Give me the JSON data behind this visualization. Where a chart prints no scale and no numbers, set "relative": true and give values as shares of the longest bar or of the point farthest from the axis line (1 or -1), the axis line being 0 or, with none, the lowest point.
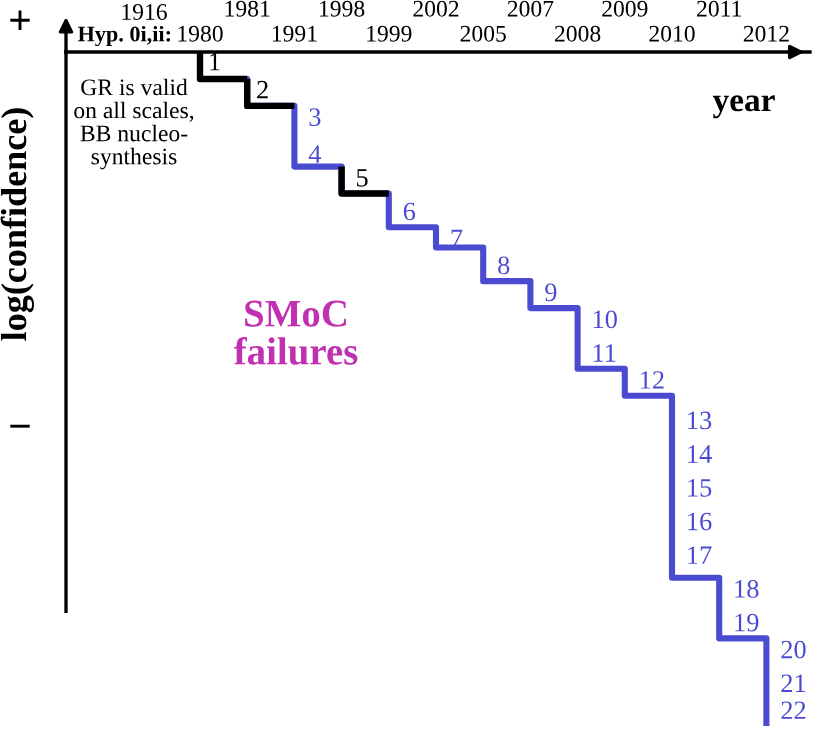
{
  "chart_data": {
    "type": "step",
    "relative": true,
    "xlabel": "year",
    "ylabel": "log(confidence)",
    "categories": [
      "1980",
      "1981",
      "1991",
      "1998",
      "1999",
      "2002",
      "2005",
      "2007",
      "2008",
      "2009",
      "2010",
      "2011",
      "2012"
    ],
    "values": [
      -0.04,
      -0.08,
      -0.17,
      -0.21,
      -0.26,
      -0.29,
      -0.34,
      -0.38,
      -0.47,
      -0.51,
      -0.78,
      -0.87,
      -1
    ],
    "color": "#4b4bd2",
    "colors": [
      "#000000",
      "#000000",
      "#4b4bd2",
      "#000000",
      "#4b4bd2",
      "#4b4bd2",
      "#4b4bd2",
      "#4b4bd2",
      "#4b4bd2",
      "#4b4bd2",
      "#4b4bd2",
      "#4b4bd2",
      "#4b4bd2"
    ],
    "annotations": [
      "1916",
      "Hyp. 0i,ii:",
      "GR is valid\non all scales,\nBB nucleo-\nsynthesis",
      "SMoC\nfailures",
      "+",
      "−",
      "1",
      "2",
      {
        "text": "3",
        "x": "1991",
        "y": -0.1
      },
      {
        "text": "4",
        "x": "1991",
        "y": -0.155
      },
      {
        "text": "5",
        "x": "1998",
        "y": -0.19
      },
      {
        "text": "6",
        "x": "1999",
        "y": -0.24
      },
      {
        "text": "7",
        "x": "2002",
        "y": -0.28
      },
      {
        "text": "8",
        "x": "2005",
        "y": -0.32
      },
      {
        "text": "9",
        "x": "2007",
        "y": -0.36
      },
      {
        "text": "10",
        "x": "2008",
        "y": -0.4
      },
      {
        "text": "11",
        "x": "2008",
        "y": -0.45
      },
      {
        "text": "12",
        "x": "2009",
        "y": -0.49
      },
      {
        "text": "13",
        "x": "2010",
        "y": -0.55
      },
      {
        "text": "14",
        "x": "2010",
        "y": -0.6
      },
      {
        "text": "15",
        "x": "2010",
        "y": -0.65
      },
      {
        "text": "16",
        "x": "2010",
        "y": -0.7
      },
      {
        "text": "17",
        "x": "2010",
        "y": -0.75
      },
      {
        "text": "18",
        "x": "2011",
        "y": -0.8
      },
      {
        "text": "19",
        "x": "2011",
        "y": -0.85
      },
      {
        "text": "20",
        "x": "2012",
        "y": -0.89
      },
      {
        "text": "21",
        "x": "2012",
        "y": -0.94
      },
      {
        "text": "22",
        "x": "2012",
        "y": -0.98
      }
    ]
  }
}
